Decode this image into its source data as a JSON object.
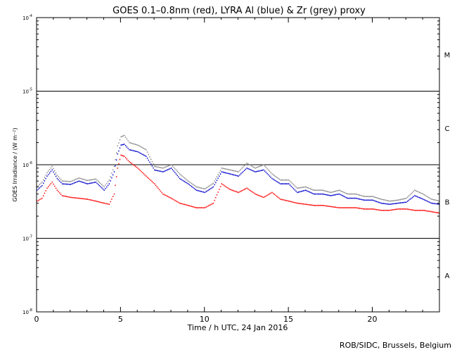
{
  "chart_data": {
    "type": "scatter",
    "title": "GOES 0.1–0.8nm (red), LYRA Al (blue) & Zr (grey) proxy",
    "xlabel": "Time / h UTC, 24 Jan 2016",
    "ylabel": "GOES Irradiance / (W m⁻²)",
    "xlim": [
      0,
      24
    ],
    "ylim": [
      1e-08,
      0.0001
    ],
    "yscale": "log",
    "x_ticks": [
      0,
      5,
      10,
      15,
      20
    ],
    "x_tick_labels": [
      "0",
      "5",
      "10",
      "15",
      "20"
    ],
    "y_tick_labels": [
      {
        "base": "10",
        "exp": "-4"
      },
      {
        "base": "10",
        "exp": "-5"
      },
      {
        "base": "10",
        "exp": "-6"
      },
      {
        "base": "10",
        "exp": "-7"
      },
      {
        "base": "10",
        "exp": "-8"
      }
    ],
    "flare_class_lines": [
      1e-05,
      1e-06,
      1e-07
    ],
    "flare_classes": [
      {
        "label": "M",
        "y": 3.16e-05
      },
      {
        "label": "C",
        "y": 3.16e-06
      },
      {
        "label": "B",
        "y": 3.16e-07
      },
      {
        "label": "A",
        "y": 3.16e-08
      }
    ],
    "credit": "ROB/SIDC, Brussels, Belgium",
    "colors": {
      "goes": "#ff0000",
      "al": "#0000cc",
      "zr": "#888888"
    },
    "series": [
      {
        "key": "goes",
        "x": [
          0,
          0.3,
          0.6,
          0.9,
          1.2,
          1.5,
          2.0,
          2.5,
          3.0,
          3.5,
          4.0,
          4.3,
          4.6,
          4.8,
          5.0,
          5.2,
          5.5,
          6.0,
          6.5,
          7.0,
          7.5,
          8.0,
          8.5,
          9.0,
          9.5,
          10.0,
          10.5,
          11.0,
          11.5,
          12.0,
          12.5,
          13.0,
          13.5,
          14.0,
          14.5,
          15.0,
          15.5,
          16.0,
          16.5,
          17.0,
          17.5,
          18.0,
          18.5,
          19.0,
          19.5,
          20.0,
          20.5,
          21.0,
          21.5,
          22.0,
          22.5,
          23.0,
          23.5,
          24.0
        ],
        "y": [
          3.2e-07,
          3.5e-07,
          4.8e-07,
          5.8e-07,
          4.5e-07,
          3.8e-07,
          3.6e-07,
          3.5e-07,
          3.4e-07,
          3.2e-07,
          3e-07,
          2.9e-07,
          4e-07,
          9e-07,
          1.35e-06,
          1.3e-06,
          1.1e-06,
          9e-07,
          7e-07,
          5.5e-07,
          4e-07,
          3.5e-07,
          3e-07,
          2.8e-07,
          2.6e-07,
          2.6e-07,
          3e-07,
          5.5e-07,
          4.6e-07,
          4.2e-07,
          4.8e-07,
          4e-07,
          3.6e-07,
          4.2e-07,
          3.4e-07,
          3.2e-07,
          3e-07,
          2.9e-07,
          2.8e-07,
          2.8e-07,
          2.7e-07,
          2.6e-07,
          2.6e-07,
          2.6e-07,
          2.5e-07,
          2.5e-07,
          2.4e-07,
          2.4e-07,
          2.5e-07,
          2.5e-07,
          2.4e-07,
          2.4e-07,
          2.3e-07,
          2.2e-07
        ]
      },
      {
        "key": "al",
        "x": [
          0,
          0.3,
          0.6,
          0.9,
          1.2,
          1.5,
          2.0,
          2.5,
          3.0,
          3.5,
          4.0,
          4.3,
          4.6,
          4.8,
          5.0,
          5.2,
          5.5,
          6.0,
          6.5,
          7.0,
          7.5,
          8.0,
          8.5,
          9.0,
          9.5,
          10.0,
          10.5,
          11.0,
          11.5,
          12.0,
          12.5,
          13.0,
          13.5,
          14.0,
          14.5,
          15.0,
          15.5,
          16.0,
          16.5,
          17.0,
          17.5,
          18.0,
          18.5,
          19.0,
          19.5,
          20.0,
          20.5,
          21.0,
          21.5,
          22.0,
          22.5,
          23.0,
          23.5,
          24.0
        ],
        "y": [
          4.5e-07,
          5.2e-07,
          7e-07,
          8.5e-07,
          6.5e-07,
          5.5e-07,
          5.4e-07,
          6e-07,
          5.5e-07,
          5.8e-07,
          4.5e-07,
          5.5e-07,
          8e-07,
          1.4e-06,
          1.85e-06,
          1.9e-06,
          1.6e-06,
          1.5e-06,
          1.3e-06,
          8.5e-07,
          8e-07,
          9e-07,
          6.5e-07,
          5.5e-07,
          4.5e-07,
          4.2e-07,
          5e-07,
          8e-07,
          7.5e-07,
          7e-07,
          9e-07,
          8e-07,
          8.5e-07,
          6.5e-07,
          5.5e-07,
          5.5e-07,
          4.2e-07,
          4.5e-07,
          4e-07,
          4e-07,
          3.8e-07,
          4e-07,
          3.5e-07,
          3.5e-07,
          3.3e-07,
          3.3e-07,
          3e-07,
          2.9e-07,
          3e-07,
          3.1e-07,
          3.8e-07,
          3.4e-07,
          3e-07,
          2.9e-07
        ]
      },
      {
        "key": "zr",
        "x": [
          0,
          0.3,
          0.6,
          0.9,
          1.2,
          1.5,
          2.0,
          2.5,
          3.0,
          3.5,
          4.0,
          4.3,
          4.6,
          4.8,
          5.0,
          5.2,
          5.5,
          6.0,
          6.5,
          7.0,
          7.5,
          8.0,
          8.5,
          9.0,
          9.5,
          10.0,
          10.5,
          11.0,
          11.5,
          12.0,
          12.5,
          13.0,
          13.5,
          14.0,
          14.5,
          15.0,
          15.5,
          16.0,
          16.5,
          17.0,
          17.5,
          18.0,
          18.5,
          19.0,
          19.5,
          20.0,
          20.5,
          21.0,
          21.5,
          22.0,
          22.5,
          23.0,
          23.5,
          24.0
        ],
        "y": [
          5e-07,
          5.8e-07,
          7.8e-07,
          9.5e-07,
          7.2e-07,
          6e-07,
          5.9e-07,
          6.6e-07,
          6.1e-07,
          6.4e-07,
          5e-07,
          6.2e-07,
          9.5e-07,
          1.8e-06,
          2.4e-06,
          2.5e-06,
          2e-06,
          1.85e-06,
          1.6e-06,
          9.5e-07,
          9e-07,
          1e-06,
          7.5e-07,
          6e-07,
          5e-07,
          4.7e-07,
          5.6e-07,
          9e-07,
          8.5e-07,
          8e-07,
          1.05e-06,
          9e-07,
          1e-06,
          7.5e-07,
          6.2e-07,
          6.2e-07,
          4.8e-07,
          5e-07,
          4.5e-07,
          4.5e-07,
          4.2e-07,
          4.5e-07,
          4e-07,
          4e-07,
          3.7e-07,
          3.7e-07,
          3.4e-07,
          3.2e-07,
          3.3e-07,
          3.5e-07,
          4.5e-07,
          4e-07,
          3.4e-07,
          3.2e-07
        ]
      }
    ]
  }
}
